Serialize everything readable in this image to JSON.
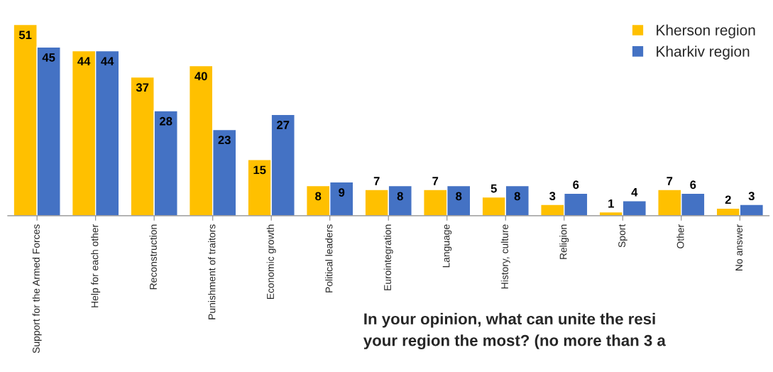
{
  "chart_data": {
    "type": "bar",
    "categories": [
      "Support for the Armed Forces",
      "Help for each other",
      "Reconstruction",
      "Punishment of traitors",
      "Economic growth",
      "Political leaders",
      "Eurointegration",
      "Language",
      "History, culture",
      "Religion",
      "Sport",
      "Other",
      "No answer"
    ],
    "series": [
      {
        "name": "Kherson region",
        "color": "#ffc000",
        "values": [
          51,
          44,
          37,
          40,
          15,
          8,
          7,
          7,
          5,
          3,
          1,
          7,
          2
        ]
      },
      {
        "name": "Kharkiv region",
        "color": "#4472c4",
        "values": [
          45,
          44,
          28,
          23,
          27,
          9,
          8,
          8,
          8,
          6,
          4,
          6,
          3
        ]
      }
    ],
    "data_labels": true,
    "legend": "top right",
    "grid": false,
    "annotations": [
      "In your opinion, what can unite the resi\nyour region the most? (no more than 3 a"
    ]
  }
}
